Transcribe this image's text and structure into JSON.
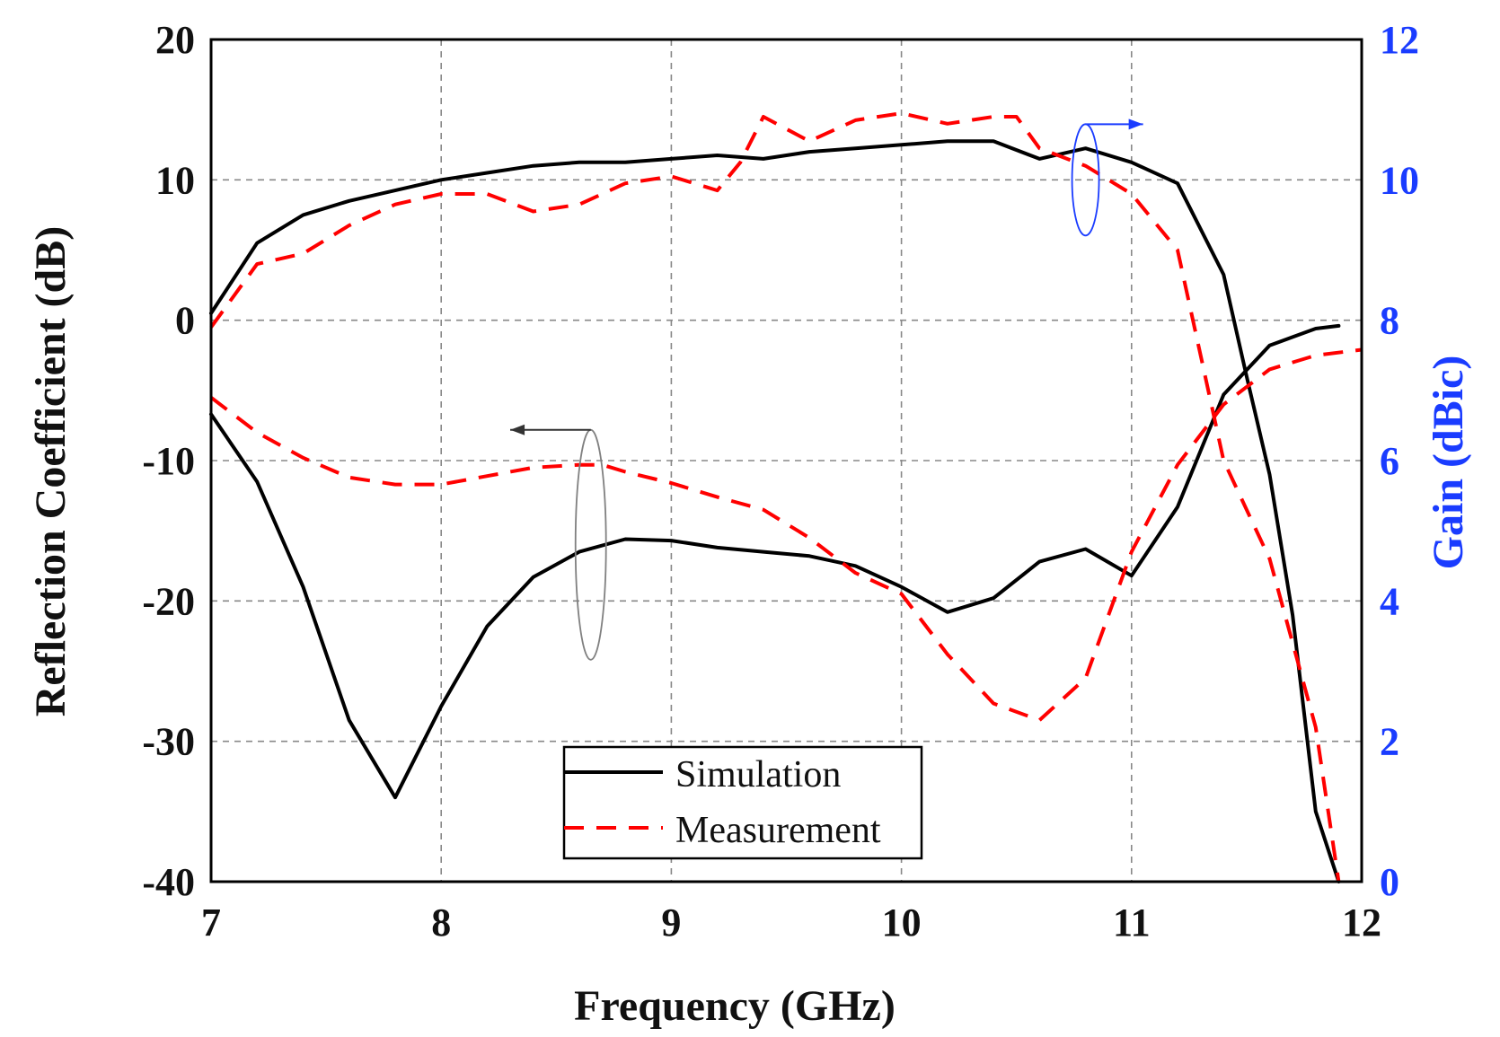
{
  "chart_data": {
    "type": "line",
    "xlabel": "Frequency (GHz)",
    "ylabel_left": "Reflection Coefficient (dB)",
    "ylabel_right": "Gain (dBic)",
    "xlim": [
      7,
      12
    ],
    "ylim_left": [
      -40,
      20
    ],
    "ylim_right": [
      0,
      12
    ],
    "xticks": [
      "7",
      "8",
      "9",
      "10",
      "11",
      "12"
    ],
    "yticks_left": [
      "20",
      "10",
      "0",
      "-10",
      "-20",
      "-30",
      "-40"
    ],
    "yticks_right": [
      "12",
      "10",
      "8",
      "6",
      "4",
      "2",
      "0"
    ],
    "grid": true,
    "legend": {
      "position": "bottom-center",
      "entries": [
        {
          "label": "Simulation",
          "style": "solid",
          "color": "#000000"
        },
        {
          "label": "Measurement",
          "style": "dashed",
          "color": "#ff0000"
        }
      ]
    },
    "annotations": [
      {
        "kind": "ellipse-arrow",
        "target_axis": "left",
        "color": "#808080",
        "cx": 8.65,
        "cy": -16,
        "arrow_to": 8.3
      },
      {
        "kind": "ellipse-arrow",
        "target_axis": "right",
        "color": "#1a3cff",
        "cx": 10.8,
        "cy": 10,
        "arrow_to": 11.05
      }
    ],
    "series": [
      {
        "name": "Simulation",
        "axis": "left",
        "style": "solid",
        "color": "#000000",
        "x": [
          7.0,
          7.2,
          7.4,
          7.6,
          7.8,
          8.0,
          8.2,
          8.4,
          8.6,
          8.8,
          9.0,
          9.2,
          9.4,
          9.6,
          9.8,
          10.0,
          10.2,
          10.4,
          10.6,
          10.8,
          11.0,
          11.2,
          11.4,
          11.6,
          11.7,
          11.8,
          11.9
        ],
        "y": [
          -6.7,
          -11.5,
          -19,
          -28.5,
          -34,
          -27.5,
          -21.8,
          -18.3,
          -16.5,
          -15.6,
          -15.7,
          -16.2,
          -16.5,
          -16.8,
          -17.5,
          -19,
          -20.8,
          -19.8,
          -17.2,
          -16.3,
          -18.2,
          -13.3,
          -5.3,
          -1.8,
          -1.2,
          -0.6,
          -0.4
        ]
      },
      {
        "name": "Simulation",
        "axis": "right",
        "style": "solid",
        "color": "#000000",
        "x": [
          7.0,
          7.2,
          7.4,
          7.6,
          7.8,
          8.0,
          8.2,
          8.4,
          8.6,
          8.8,
          9.0,
          9.2,
          9.4,
          9.6,
          9.8,
          10.0,
          10.2,
          10.4,
          10.6,
          10.8,
          11.0,
          11.2,
          11.4,
          11.5,
          11.6,
          11.7,
          11.8,
          11.9
        ],
        "y": [
          8.1,
          9.1,
          9.5,
          9.7,
          9.85,
          10.0,
          10.1,
          10.2,
          10.25,
          10.25,
          10.3,
          10.35,
          10.3,
          10.4,
          10.45,
          10.5,
          10.55,
          10.55,
          10.3,
          10.45,
          10.25,
          9.95,
          8.65,
          7.2,
          5.8,
          3.8,
          1.0,
          0.0
        ]
      },
      {
        "name": "Measurement",
        "axis": "left",
        "style": "dashed",
        "color": "#ff0000",
        "x": [
          7.0,
          7.2,
          7.4,
          7.6,
          7.8,
          8.0,
          8.2,
          8.4,
          8.6,
          8.7,
          8.8,
          9.0,
          9.2,
          9.4,
          9.6,
          9.8,
          10.0,
          10.2,
          10.4,
          10.6,
          10.8,
          11.0,
          11.2,
          11.4,
          11.6,
          11.8,
          12.0
        ],
        "y": [
          -5.5,
          -8,
          -9.8,
          -11.2,
          -11.7,
          -11.7,
          -11.1,
          -10.5,
          -10.3,
          -10.3,
          -10.8,
          -11.6,
          -12.6,
          -13.5,
          -15.5,
          -18,
          -19.5,
          -23.8,
          -27.3,
          -28.5,
          -25.5,
          -16.5,
          -10.3,
          -6,
          -3.5,
          -2.5,
          -2.1
        ]
      },
      {
        "name": "Measurement",
        "axis": "right",
        "style": "dashed",
        "color": "#ff0000",
        "x": [
          7.0,
          7.2,
          7.4,
          7.6,
          7.8,
          8.0,
          8.2,
          8.4,
          8.6,
          8.8,
          9.0,
          9.2,
          9.3,
          9.4,
          9.6,
          9.8,
          10.0,
          10.2,
          10.4,
          10.5,
          10.6,
          10.8,
          11.0,
          11.2,
          11.3,
          11.4,
          11.6,
          11.8,
          11.9
        ],
        "y": [
          7.9,
          8.8,
          8.95,
          9.35,
          9.65,
          9.8,
          9.8,
          9.55,
          9.65,
          9.95,
          10.05,
          9.85,
          10.25,
          10.9,
          10.55,
          10.85,
          10.95,
          10.8,
          10.9,
          10.9,
          10.45,
          10.2,
          9.8,
          9.0,
          7.5,
          6.0,
          4.6,
          2.2,
          0.0
        ]
      }
    ]
  }
}
